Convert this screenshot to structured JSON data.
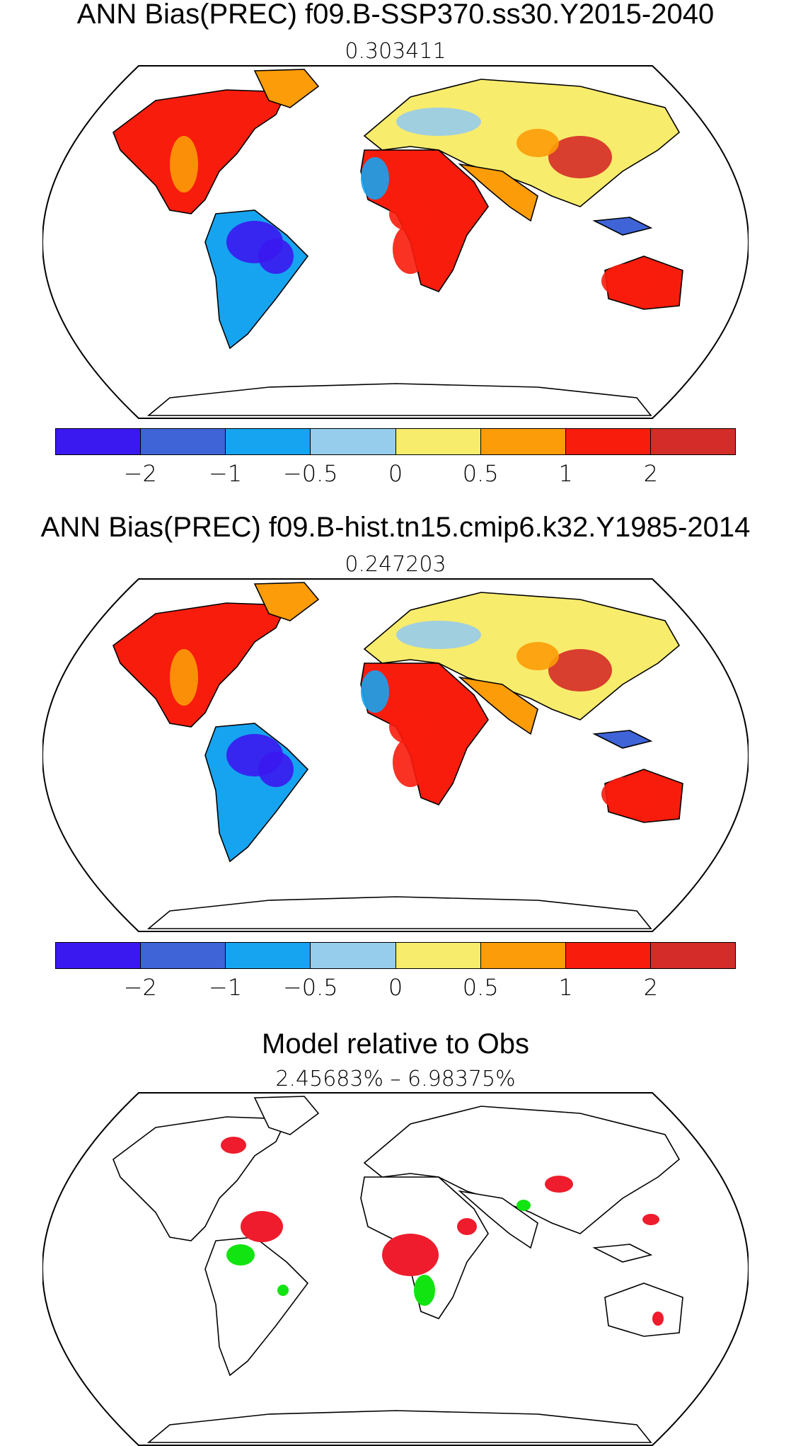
{
  "colors": {
    "land_outline": "#000000",
    "legend_scale": [
      "#3a18f0",
      "#3e64d8",
      "#16a4f0",
      "#96ccec",
      "#f8ec6c",
      "#fc9c08",
      "#f81c0c",
      "#d42c28"
    ],
    "diff_better": "#12e412",
    "diff_worse": "#ee1c2c"
  },
  "panels": [
    {
      "title": "ANN Bias(PREC) f09.B-SSP370.ss30.Y2015-2040",
      "value": "0.303411"
    },
    {
      "title": "ANN Bias(PREC) f09.B-hist.tn15.cmip6.k32.Y1985-2014",
      "value": "0.247203"
    },
    {
      "title": "Model relative to Obs",
      "value": "2.45683% – 6.98375%"
    }
  ],
  "legend": {
    "tick_labels": [
      "−2",
      "−1",
      "−0.5",
      "0",
      "0.5",
      "1",
      "2"
    ]
  }
}
